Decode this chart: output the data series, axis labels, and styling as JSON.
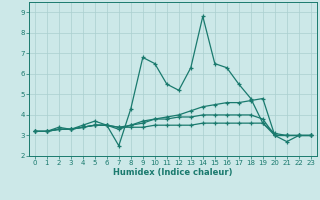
{
  "xlabel": "Humidex (Indice chaleur)",
  "x": [
    0,
    1,
    2,
    3,
    4,
    5,
    6,
    7,
    8,
    9,
    10,
    11,
    12,
    13,
    14,
    15,
    16,
    17,
    18,
    19,
    20,
    21,
    22,
    23
  ],
  "line1": [
    3.2,
    3.2,
    3.4,
    3.3,
    3.5,
    3.7,
    3.5,
    2.5,
    4.3,
    6.8,
    6.5,
    5.5,
    5.2,
    6.3,
    8.8,
    6.5,
    6.3,
    5.5,
    4.8,
    3.6,
    3.0,
    2.7,
    3.0,
    3.0
  ],
  "line2": [
    3.2,
    3.2,
    3.3,
    3.3,
    3.4,
    3.5,
    3.5,
    3.4,
    3.5,
    3.6,
    3.8,
    3.9,
    4.0,
    4.2,
    4.4,
    4.5,
    4.6,
    4.6,
    4.7,
    4.8,
    3.0,
    3.0,
    3.0,
    3.0
  ],
  "line3": [
    3.2,
    3.2,
    3.3,
    3.3,
    3.4,
    3.5,
    3.5,
    3.4,
    3.4,
    3.4,
    3.5,
    3.5,
    3.5,
    3.5,
    3.6,
    3.6,
    3.6,
    3.6,
    3.6,
    3.6,
    3.1,
    3.0,
    3.0,
    3.0
  ],
  "line4": [
    3.2,
    3.2,
    3.3,
    3.3,
    3.4,
    3.5,
    3.5,
    3.3,
    3.5,
    3.7,
    3.8,
    3.8,
    3.9,
    3.9,
    4.0,
    4.0,
    4.0,
    4.0,
    4.0,
    3.8,
    3.0,
    3.0,
    3.0,
    3.0
  ],
  "line_color": "#1a7a6e",
  "bg_color": "#cce8e8",
  "grid_color": "#aacfcf",
  "ylim": [
    2.0,
    9.5
  ],
  "xlim": [
    -0.5,
    23.5
  ],
  "yticks": [
    2,
    3,
    4,
    5,
    6,
    7,
    8,
    9
  ],
  "xticks": [
    0,
    1,
    2,
    3,
    4,
    5,
    6,
    7,
    8,
    9,
    10,
    11,
    12,
    13,
    14,
    15,
    16,
    17,
    18,
    19,
    20,
    21,
    22,
    23
  ]
}
